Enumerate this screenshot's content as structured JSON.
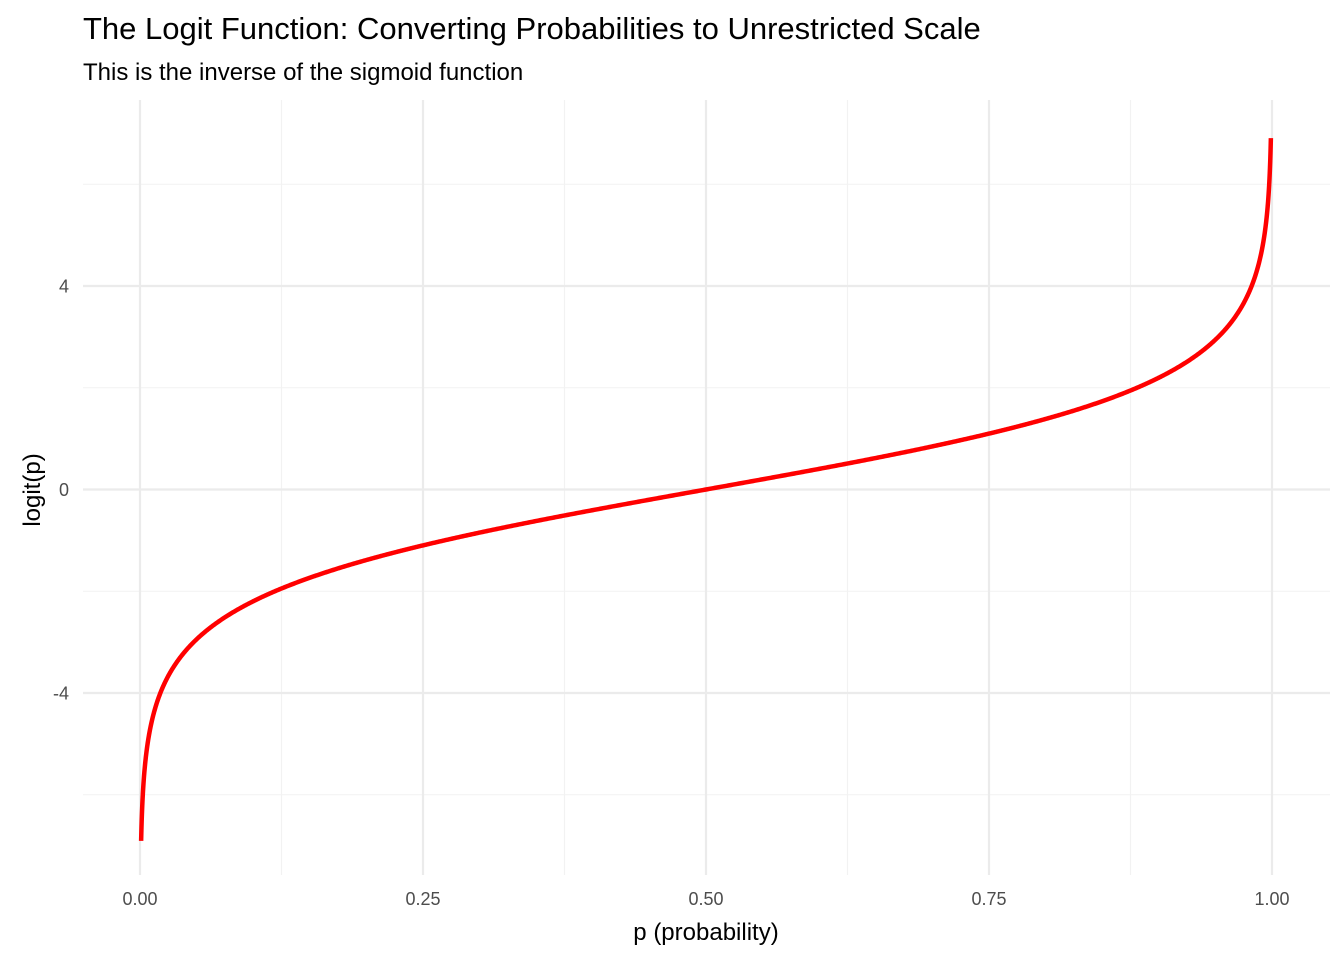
{
  "chart_data": {
    "type": "line",
    "title": "The Logit Function: Converting Probabilities to Unrestricted Scale",
    "subtitle": "This is the inverse of the sigmoid function",
    "xlabel": "p (probability)",
    "ylabel": "logit(p)",
    "xlim": [
      0.0,
      1.0
    ],
    "ylim": [
      -6.91,
      6.91
    ],
    "x_ticks": [
      0.0,
      0.25,
      0.5,
      0.75,
      1.0
    ],
    "x_tick_labels": [
      "0.00",
      "0.25",
      "0.50",
      "0.75",
      "1.00"
    ],
    "y_ticks": [
      -4,
      0,
      4
    ],
    "y_tick_labels": [
      "-4",
      "0",
      "4"
    ],
    "grid": true,
    "series": [
      {
        "function": "logit",
        "color": "#ff0000",
        "x": [
          0.001,
          0.005,
          0.01,
          0.02,
          0.05,
          0.1,
          0.15,
          0.2,
          0.25,
          0.3,
          0.35,
          0.4,
          0.45,
          0.5,
          0.55,
          0.6,
          0.65,
          0.7,
          0.75,
          0.8,
          0.85,
          0.9,
          0.95,
          0.98,
          0.99,
          0.995,
          0.999
        ],
        "y": [
          -6.91,
          -5.29,
          -4.6,
          -3.89,
          -2.94,
          -2.2,
          -1.73,
          -1.39,
          -1.1,
          -0.85,
          -0.62,
          -0.41,
          -0.2,
          0.0,
          0.2,
          0.41,
          0.62,
          0.85,
          1.1,
          1.39,
          1.73,
          2.2,
          2.94,
          3.89,
          4.6,
          5.29,
          6.91
        ]
      }
    ]
  },
  "colors": {
    "line": "#ff0000",
    "grid_major": "#ebebeb",
    "grid_minor": "#f2f2f2",
    "tick_text": "#4d4d4d"
  }
}
